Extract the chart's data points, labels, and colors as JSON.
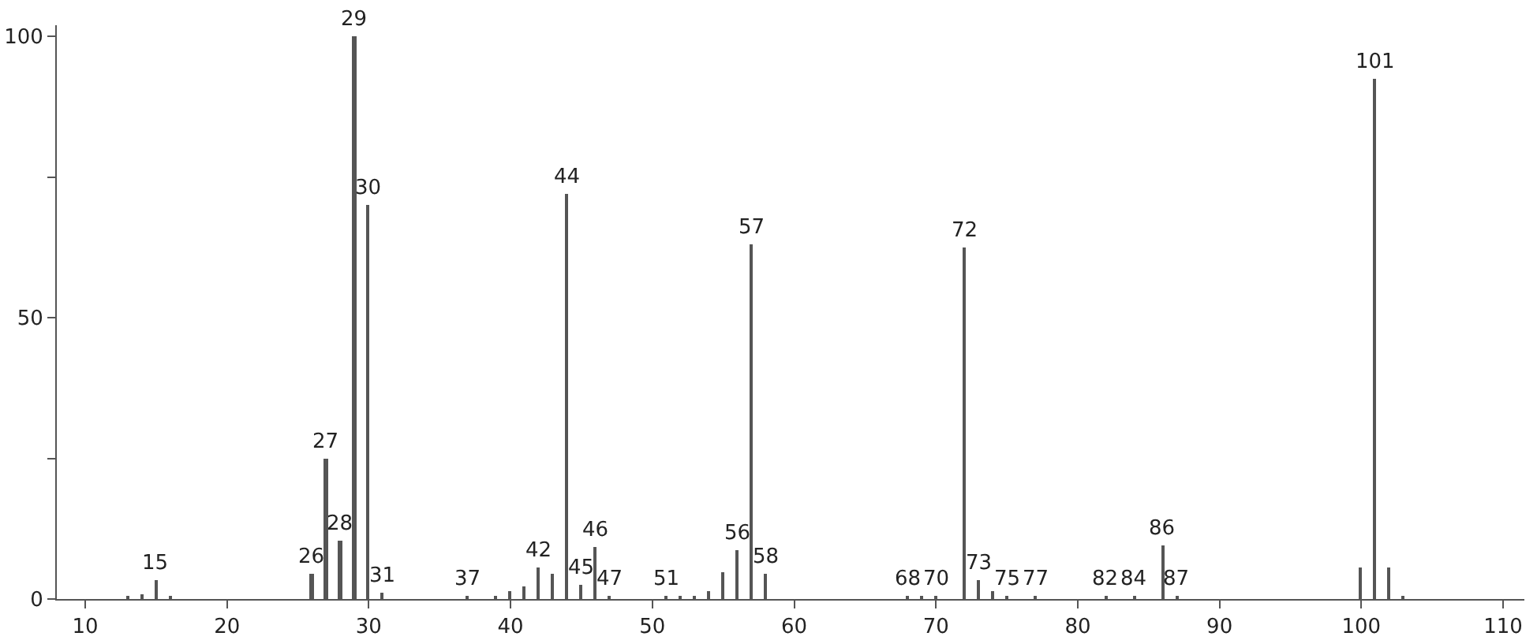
{
  "chart_data": {
    "type": "bar",
    "x": [
      13,
      14,
      15,
      16,
      26,
      27,
      28,
      29,
      30,
      31,
      37,
      39,
      40,
      41,
      42,
      43,
      44,
      45,
      46,
      47,
      51,
      52,
      53,
      54,
      55,
      56,
      57,
      58,
      68,
      69,
      70,
      72,
      73,
      74,
      75,
      77,
      82,
      84,
      86,
      87,
      100,
      101,
      102,
      103
    ],
    "values": [
      0.5,
      0.8,
      3.5,
      0.5,
      4.4,
      25,
      10.5,
      100,
      70,
      1,
      0.5,
      0.5,
      1.4,
      2.3,
      5.5,
      4.4,
      72,
      2.5,
      9.3,
      0.5,
      0.5,
      0.5,
      0.5,
      1.5,
      4.7,
      8.6,
      63,
      4.5,
      0.5,
      0.5,
      0.5,
      62.5,
      3.4,
      1.3,
      0.5,
      0.5,
      0.5,
      0.5,
      9.6,
      0.5,
      5.5,
      92.5,
      5.5,
      0.3
    ],
    "annotations": [
      {
        "text": "15",
        "x": 15,
        "y": 3.5
      },
      {
        "text": "26",
        "x": 26,
        "y": 4.4
      },
      {
        "text": "27",
        "x": 27,
        "y": 25
      },
      {
        "text": "28",
        "x": 28,
        "y": 10.5
      },
      {
        "text": "29",
        "x": 29,
        "y": 100
      },
      {
        "text": "30",
        "x": 30,
        "y": 70
      },
      {
        "text": "31",
        "x": 31,
        "y": 1
      },
      {
        "text": "37",
        "x": 37,
        "y": 0.5
      },
      {
        "text": "42",
        "x": 42,
        "y": 5.5
      },
      {
        "text": "44",
        "x": 44,
        "y": 72
      },
      {
        "text": "45",
        "x": 45,
        "y": 2.5
      },
      {
        "text": "46",
        "x": 46,
        "y": 9.3
      },
      {
        "text": "47",
        "x": 47,
        "y": 0.5
      },
      {
        "text": "51",
        "x": 51,
        "y": 0.5
      },
      {
        "text": "56",
        "x": 56,
        "y": 8.6
      },
      {
        "text": "57",
        "x": 57,
        "y": 63
      },
      {
        "text": "58",
        "x": 58,
        "y": 4.5
      },
      {
        "text": "68",
        "x": 68,
        "y": 0.5
      },
      {
        "text": "70",
        "x": 70,
        "y": 0.5
      },
      {
        "text": "72",
        "x": 72,
        "y": 62.5
      },
      {
        "text": "73",
        "x": 73,
        "y": 3.4
      },
      {
        "text": "75",
        "x": 75,
        "y": 0.5
      },
      {
        "text": "77",
        "x": 77,
        "y": 0.5
      },
      {
        "text": "82",
        "x": 82,
        "y": 0.5
      },
      {
        "text": "84",
        "x": 84,
        "y": 0.5
      },
      {
        "text": "86",
        "x": 86,
        "y": 9.6
      },
      {
        "text": "87",
        "x": 87,
        "y": 0.5
      },
      {
        "text": "101",
        "x": 101,
        "y": 92.5
      }
    ],
    "color": "#555555",
    "xlim": [
      8,
      111.5
    ],
    "xticks": [
      10,
      20,
      30,
      40,
      50,
      60,
      70,
      80,
      90,
      100,
      110
    ],
    "ylim": [
      0,
      102
    ],
    "yticks": [
      0,
      {
        "value": 25,
        "label": null
      },
      50,
      {
        "value": 75,
        "label": null
      },
      100
    ],
    "grid": false
  }
}
